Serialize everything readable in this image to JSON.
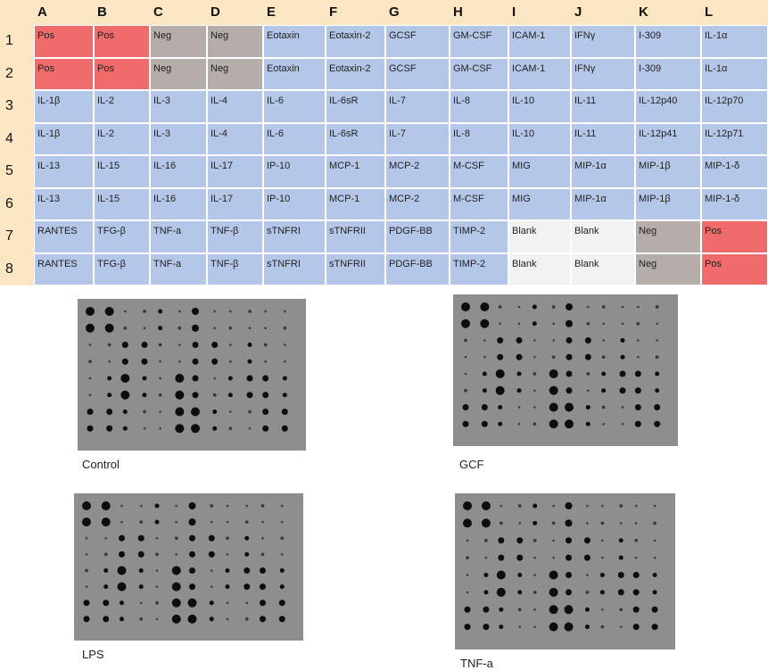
{
  "table": {
    "columns": [
      "A",
      "B",
      "C",
      "D",
      "E",
      "F",
      "G",
      "H",
      "I",
      "J",
      "K",
      "L"
    ],
    "rows": [
      {
        "label": "1",
        "cells": [
          "Pos",
          "Pos",
          "Neg",
          "Neg",
          "Eotaxin",
          "Eotaxin-2",
          "GCSF",
          "GM-CSF",
          "ICAM-1",
          "IFNγ",
          "I-309",
          "IL-1α"
        ],
        "colors": [
          "#ef6b6c",
          "#ef6b6c",
          "#b4ada9",
          "#b4ada9",
          "#b5c7e8",
          "#b5c7e8",
          "#b5c7e8",
          "#b5c7e8",
          "#b5c7e8",
          "#b5c7e8",
          "#b5c7e8",
          "#b5c7e8"
        ]
      },
      {
        "label": "2",
        "cells": [
          "Pos",
          "Pos",
          "Neg",
          "Neg",
          "Eotaxin",
          "Eotaxin-2",
          "GCSF",
          "GM-CSF",
          "ICAM-1",
          "IFNγ",
          "I-309",
          "IL-1α"
        ],
        "colors": [
          "#ef6b6c",
          "#ef6b6c",
          "#b4ada9",
          "#b4ada9",
          "#b5c7e8",
          "#b5c7e8",
          "#b5c7e8",
          "#b5c7e8",
          "#b5c7e8",
          "#b5c7e8",
          "#b5c7e8",
          "#b5c7e8"
        ]
      },
      {
        "label": "3",
        "cells": [
          "IL-1β",
          "IL-2",
          "IL-3",
          "IL-4",
          "IL-6",
          "IL-6sR",
          "IL-7",
          "IL-8",
          "IL-10",
          "IL-11",
          "IL-12p40",
          "IL-12p70"
        ],
        "colors": [
          "#b5c7e8",
          "#b5c7e8",
          "#b5c7e8",
          "#b5c7e8",
          "#b5c7e8",
          "#b5c7e8",
          "#b5c7e8",
          "#b5c7e8",
          "#b5c7e8",
          "#b5c7e8",
          "#b5c7e8",
          "#b5c7e8"
        ]
      },
      {
        "label": "4",
        "cells": [
          "IL-1β",
          "IL-2",
          "IL-3",
          "IL-4",
          "IL-6",
          "IL-6sR",
          "IL-7",
          "IL-8",
          "IL-10",
          "IL-11",
          "IL-12p41",
          "IL-12p71"
        ],
        "colors": [
          "#b5c7e8",
          "#b5c7e8",
          "#b5c7e8",
          "#b5c7e8",
          "#b5c7e8",
          "#b5c7e8",
          "#b5c7e8",
          "#b5c7e8",
          "#b5c7e8",
          "#b5c7e8",
          "#b5c7e8",
          "#b5c7e8"
        ]
      },
      {
        "label": "5",
        "cells": [
          "IL-13",
          "IL-15",
          "IL-16",
          "IL-17",
          "IP-10",
          "MCP-1",
          "MCP-2",
          "M-CSF",
          "MIG",
          "MIP-1α",
          "MIP-1β",
          "MIP-1-δ"
        ],
        "colors": [
          "#b5c7e8",
          "#b5c7e8",
          "#b5c7e8",
          "#b5c7e8",
          "#b5c7e8",
          "#b5c7e8",
          "#b5c7e8",
          "#b5c7e8",
          "#b5c7e8",
          "#b5c7e8",
          "#b5c7e8",
          "#b5c7e8"
        ]
      },
      {
        "label": "6",
        "cells": [
          "IL-13",
          "IL-15",
          "IL-16",
          "IL-17",
          "IP-10",
          "MCP-1",
          "MCP-2",
          "M-CSF",
          "MIG",
          "MIP-1α",
          "MIP-1β",
          "MIP-1-δ"
        ],
        "colors": [
          "#b5c7e8",
          "#b5c7e8",
          "#b5c7e8",
          "#b5c7e8",
          "#b5c7e8",
          "#b5c7e8",
          "#b5c7e8",
          "#b5c7e8",
          "#b5c7e8",
          "#b5c7e8",
          "#b5c7e8",
          "#b5c7e8"
        ]
      },
      {
        "label": "7",
        "cells": [
          "RANTES",
          "TFG-β",
          "TNF-a",
          "TNF-β",
          "sTNFRI",
          "sTNFRII",
          "PDGF-BB",
          "TIMP-2",
          "Blank",
          "Blank",
          "Neg",
          "Pos"
        ],
        "colors": [
          "#b5c7e8",
          "#b5c7e8",
          "#b5c7e8",
          "#b5c7e8",
          "#b5c7e8",
          "#b5c7e8",
          "#b5c7e8",
          "#b5c7e8",
          "#f2f2f2",
          "#f2f2f2",
          "#b4ada9",
          "#ef6b6c"
        ]
      },
      {
        "label": "8",
        "cells": [
          "RANTES",
          "TFG-β",
          "TNF-a",
          "TNF-β",
          "sTNFRI",
          "sTNFRII",
          "PDGF-BB",
          "TIMP-2",
          "Blank",
          "Blank",
          "Neg",
          "Pos"
        ],
        "colors": [
          "#b5c7e8",
          "#b5c7e8",
          "#b5c7e8",
          "#b5c7e8",
          "#b5c7e8",
          "#b5c7e8",
          "#b5c7e8",
          "#b5c7e8",
          "#f2f2f2",
          "#f2f2f2",
          "#b4ada9",
          "#ef6b6c"
        ]
      }
    ]
  },
  "blots": [
    {
      "label": "Control"
    },
    {
      "label": "GCF"
    },
    {
      "label": "LPS"
    },
    {
      "label": "TNF-a"
    }
  ]
}
